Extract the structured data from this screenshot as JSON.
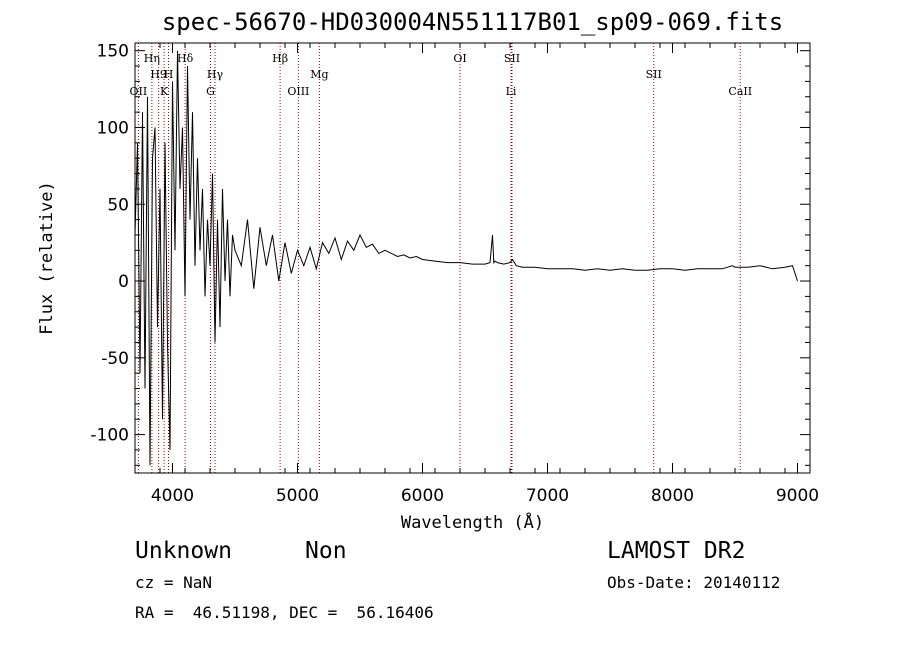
{
  "chart_data": {
    "type": "line",
    "title": "spec-56670-HD030004N551117B01_sp09-069.fits",
    "xlabel": "Wavelength (Å)",
    "ylabel": "Flux (relative)",
    "xlim": [
      3700,
      9100
    ],
    "ylim": [
      -125,
      155
    ],
    "x_ticks": [
      4000,
      5000,
      6000,
      7000,
      8000,
      9000
    ],
    "y_ticks": [
      -100,
      -50,
      0,
      50,
      100,
      150
    ],
    "grid": false,
    "series": [
      {
        "x": [
          3700,
          3720,
          3740,
          3760,
          3780,
          3800,
          3820,
          3840,
          3860,
          3880,
          3900,
          3920,
          3940,
          3960,
          3980,
          4000,
          4020,
          4040,
          4060,
          4080,
          4100,
          4120,
          4140,
          4160,
          4180,
          4200,
          4220,
          4240,
          4260,
          4280,
          4300,
          4320,
          4340,
          4360,
          4380,
          4400,
          4420,
          4440,
          4460,
          4480,
          4500,
          4550,
          4600,
          4650,
          4700,
          4750,
          4800,
          4850,
          4900,
          4950,
          5000,
          5050,
          5100,
          5150,
          5200,
          5250,
          5300,
          5350,
          5400,
          5450,
          5500,
          5550,
          5600,
          5650,
          5700,
          5750,
          5800,
          5850,
          5900,
          5950,
          6000,
          6100,
          6200,
          6300,
          6400,
          6500,
          6540,
          6560,
          6570,
          6580,
          6600,
          6650,
          6700,
          6720,
          6750,
          6800,
          6900,
          7000,
          7100,
          7200,
          7300,
          7400,
          7500,
          7600,
          7700,
          7800,
          7900,
          8000,
          8100,
          8200,
          8300,
          8400,
          8480,
          8500,
          8600,
          8700,
          8800,
          8900,
          8960,
          8980,
          9000
        ],
        "y": [
          30,
          90,
          -60,
          110,
          -70,
          120,
          -120,
          80,
          100,
          -30,
          60,
          -90,
          90,
          -40,
          -110,
          130,
          20,
          150,
          60,
          100,
          -10,
          140,
          40,
          110,
          10,
          80,
          20,
          60,
          -10,
          40,
          10,
          70,
          -40,
          40,
          -30,
          60,
          0,
          40,
          -10,
          30,
          20,
          10,
          40,
          -5,
          35,
          10,
          30,
          0,
          25,
          5,
          20,
          10,
          22,
          8,
          25,
          18,
          28,
          14,
          26,
          20,
          30,
          22,
          24,
          18,
          20,
          18,
          16,
          17,
          15,
          16,
          14,
          13,
          12,
          12,
          11,
          11,
          12,
          30,
          12,
          13,
          12,
          11,
          12,
          14,
          10,
          9,
          9,
          8,
          8,
          8,
          7,
          8,
          7,
          8,
          7,
          7,
          8,
          8,
          7,
          8,
          8,
          8,
          10,
          9,
          9,
          10,
          8,
          9,
          10,
          5,
          0
        ]
      }
    ],
    "line_ids": [
      {
        "label": "Hη",
        "wave": 3835,
        "row": 1
      },
      {
        "label": "H9",
        "wave": 3889,
        "row": 2
      },
      {
        "label": "OII",
        "wave": 3727,
        "row": 3
      },
      {
        "label": "H",
        "wave": 3968,
        "row": 2
      },
      {
        "label": "K",
        "wave": 3933,
        "row": 3
      },
      {
        "label": "Hδ",
        "wave": 4101,
        "row": 1
      },
      {
        "label": "Hγ",
        "wave": 4340,
        "row": 2
      },
      {
        "label": "G",
        "wave": 4304,
        "row": 3
      },
      {
        "label": "Hβ",
        "wave": 4861,
        "row": 1
      },
      {
        "label": "OIII",
        "wave": 5007,
        "row": 3
      },
      {
        "label": "Mg",
        "wave": 5175,
        "row": 2
      },
      {
        "label": "OI",
        "wave": 6300,
        "row": 1
      },
      {
        "label": "SII",
        "wave": 6716,
        "row": 1
      },
      {
        "label": "Li",
        "wave": 6708,
        "row": 3
      },
      {
        "label": "SII",
        "wave": 7850,
        "row": 2
      },
      {
        "label": "CaII",
        "wave": 8542,
        "row": 3
      }
    ]
  },
  "info": {
    "class": "Unknown",
    "subclass": "Non",
    "survey": "LAMOST DR2",
    "cz": "cz = NaN",
    "obs_date": "Obs-Date: 20140112",
    "coords": "RA =  46.51198, DEC =  56.16406"
  },
  "colors": {
    "line_marker": "#b00000",
    "spectrum": "#000000"
  }
}
